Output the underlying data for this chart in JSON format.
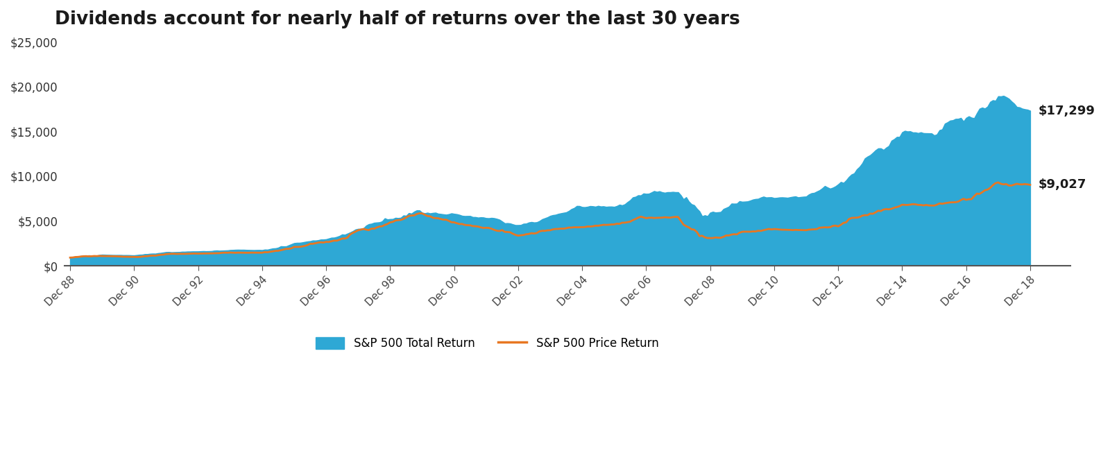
{
  "title": "Dividends account for nearly half of returns over the last 30 years",
  "title_fontsize": 19,
  "title_fontweight": "bold",
  "background_color": "#ffffff",
  "area_color": "#2ea8d5",
  "line_color": "#e87722",
  "line_width": 2.0,
  "label_total": "$17,299",
  "label_price": "$9,027",
  "legend_total": "S&P 500 Total Return",
  "legend_price": "S&P 500 Price Return",
  "ylim": [
    0,
    25000
  ],
  "yticks": [
    0,
    5000,
    10000,
    15000,
    20000,
    25000
  ],
  "ytick_labels": [
    "$0",
    "$5,000",
    "$10,000",
    "$15,000",
    "$20,000",
    "$25,000"
  ],
  "xtick_positions": [
    0,
    24,
    48,
    72,
    96,
    120,
    144,
    168,
    192,
    216,
    240,
    264,
    288,
    312,
    336,
    360
  ],
  "xtick_labels": [
    "Dec 88",
    "Dec 90",
    "Dec 92",
    "Dec 94",
    "Dec 96",
    "Dec 98",
    "Dec 00",
    "Dec 02",
    "Dec 04",
    "Dec 06",
    "Dec 08",
    "Dec 10",
    "Dec 12",
    "Dec 14",
    "Dec 16",
    "Dec 18"
  ]
}
